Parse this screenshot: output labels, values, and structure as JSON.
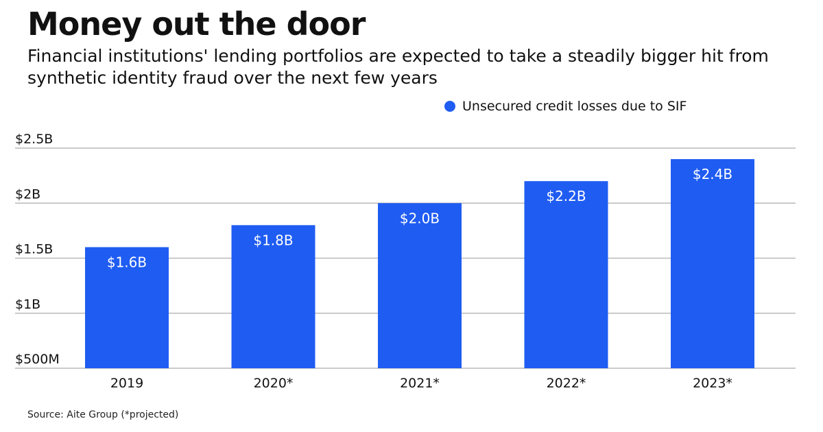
{
  "title": "Money out the door",
  "subtitle": "Financial institutions' lending portfolios are expected to take a steadily bigger hit from synthetic identity fraud over the next few years",
  "source": "Source: Aite Group (*projected)",
  "colors": {
    "bar": "#1f5cf2",
    "grid": "#b9b9b9",
    "bar_label": "#ffffff"
  },
  "chart_data": {
    "type": "bar",
    "title": "Money out the door",
    "categories": [
      "2019",
      "2020*",
      "2021*",
      "2022*",
      "2023*"
    ],
    "series": [
      {
        "name": "Unsecured credit losses due to SIF",
        "values": [
          1.6,
          1.8,
          2.0,
          2.2,
          2.4
        ],
        "data_labels": [
          "$1.6B",
          "$1.8B",
          "$2.0B",
          "$2.2B",
          "$2.4B"
        ]
      }
    ],
    "y_unit": "billion USD",
    "ylim": [
      0.5,
      2.5
    ],
    "yticks": [
      0.5,
      1,
      1.5,
      2,
      2.5
    ],
    "ytick_labels": [
      "$500M",
      "$1B",
      "$1.5B",
      "$2B",
      "$2.5B"
    ],
    "grid": true,
    "legend_position": "top-right"
  }
}
